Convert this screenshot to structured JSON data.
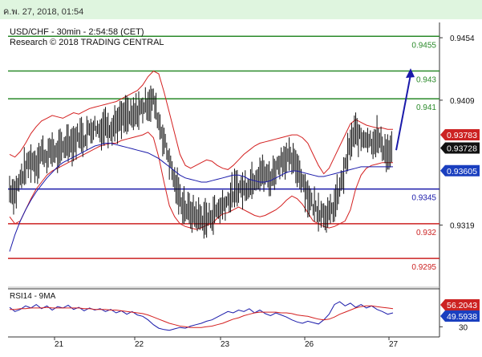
{
  "header": {
    "datetime": "ค.พ. 27, 2018, 01:54"
  },
  "chart_data": {
    "type": "line",
    "title": "USD/CHF - 30min - 2:54:58 (CET)",
    "subtitle": "Research © 2018 TRADING CENTRAL",
    "ylim": [
      0.9276,
      0.9465
    ],
    "y_ticks": [
      0.9454,
      0.9409,
      0.9319
    ],
    "x_ticks": [
      "21",
      "22",
      "23",
      "26",
      "27"
    ],
    "levels": [
      {
        "label": "0.9455",
        "value": 0.9455,
        "color": "#2a8a2a"
      },
      {
        "label": "0.943",
        "value": 0.943,
        "color": "#2a8a2a"
      },
      {
        "label": "0.941",
        "value": 0.941,
        "color": "#2a8a2a"
      },
      {
        "label": "0.9345",
        "value": 0.9345,
        "color": "#1a1aaa"
      },
      {
        "label": "0.932",
        "value": 0.932,
        "color": "#cc2222"
      },
      {
        "label": "0.9295",
        "value": 0.9295,
        "color": "#cc2222"
      }
    ],
    "price_tags": [
      {
        "label": "0.93783",
        "value": 0.93783,
        "bg": "#cc2222"
      },
      {
        "label": "0.93728",
        "value": 0.93728,
        "bg": "#111111"
      },
      {
        "label": "0.93605",
        "value": 0.93605,
        "bg": "#1a3fbf"
      }
    ],
    "price_series": [
      0.9345,
      0.9342,
      0.9352,
      0.936,
      0.9366,
      0.9363,
      0.9372,
      0.9368,
      0.9374,
      0.937,
      0.9375,
      0.938,
      0.9378,
      0.9384,
      0.9382,
      0.9388,
      0.939,
      0.9387,
      0.9392,
      0.9389,
      0.9393,
      0.9395,
      0.9398,
      0.9396,
      0.9401,
      0.9404,
      0.9407,
      0.9409,
      0.9394,
      0.938,
      0.9366,
      0.935,
      0.9338,
      0.9331,
      0.9328,
      0.9326,
      0.9324,
      0.9323,
      0.9326,
      0.933,
      0.9333,
      0.9337,
      0.9342,
      0.9346,
      0.9345,
      0.9349,
      0.9353,
      0.9357,
      0.9355,
      0.9352,
      0.936,
      0.9366,
      0.9368,
      0.9365,
      0.9361,
      0.9352,
      0.934,
      0.9333,
      0.933,
      0.9328,
      0.9326,
      0.9333,
      0.9345,
      0.936,
      0.9378,
      0.9386,
      0.9381,
      0.9383,
      0.9379,
      0.9382,
      0.9376,
      0.937,
      0.9373
    ],
    "ma_series": [
      0.93,
      0.9312,
      0.9322,
      0.933,
      0.9337,
      0.9343,
      0.9348,
      0.9353,
      0.9357,
      0.9361,
      0.9364,
      0.9366,
      0.9368,
      0.937,
      0.9372,
      0.9374,
      0.9376,
      0.9377,
      0.9378,
      0.9378,
      0.9377,
      0.9376,
      0.9375,
      0.9374,
      0.9373,
      0.9372,
      0.9371,
      0.9369,
      0.9367,
      0.9364,
      0.9361,
      0.9358,
      0.9355,
      0.9353,
      0.9352,
      0.9351,
      0.935,
      0.935,
      0.9351,
      0.9352,
      0.9353,
      0.9354,
      0.9355,
      0.9355,
      0.9354,
      0.9352,
      0.9351,
      0.935,
      0.935,
      0.9351,
      0.9353,
      0.9355,
      0.9357,
      0.9358,
      0.9358,
      0.9357,
      0.9356,
      0.9355,
      0.9354,
      0.9354,
      0.9355,
      0.9356,
      0.9357,
      0.9358,
      0.9359,
      0.936,
      0.9361,
      0.9361,
      0.9361,
      0.9361,
      0.9361,
      0.9361,
      0.9361
    ],
    "bb_upper": [
      0.937,
      0.9368,
      0.9372,
      0.9378,
      0.9385,
      0.939,
      0.9394,
      0.9396,
      0.9398,
      0.9397,
      0.9396,
      0.9398,
      0.94,
      0.9399,
      0.9401,
      0.9403,
      0.9404,
      0.9405,
      0.9406,
      0.9407,
      0.9408,
      0.941,
      0.9412,
      0.9414,
      0.9416,
      0.942,
      0.9426,
      0.943,
      0.9428,
      0.9415,
      0.94,
      0.9385,
      0.937,
      0.9362,
      0.936,
      0.9362,
      0.9364,
      0.9366,
      0.9365,
      0.9362,
      0.936,
      0.9359,
      0.9362,
      0.9366,
      0.937,
      0.9373,
      0.9376,
      0.9378,
      0.9379,
      0.938,
      0.9381,
      0.9382,
      0.9383,
      0.9384,
      0.9384,
      0.9382,
      0.9378,
      0.937,
      0.9362,
      0.9356,
      0.936,
      0.9368,
      0.9376,
      0.9384,
      0.9392,
      0.9395,
      0.9393,
      0.9391,
      0.939,
      0.9389,
      0.9389,
      0.9388,
      0.9388
    ],
    "bb_lower": [
      0.9325,
      0.932,
      0.9322,
      0.933,
      0.9338,
      0.9345,
      0.935,
      0.9355,
      0.9358,
      0.936,
      0.9362,
      0.9364,
      0.9366,
      0.9368,
      0.937,
      0.9372,
      0.9374,
      0.9376,
      0.9377,
      0.9378,
      0.9378,
      0.938,
      0.9381,
      0.9382,
      0.9383,
      0.9384,
      0.9386,
      0.9382,
      0.9368,
      0.935,
      0.9333,
      0.9325,
      0.932,
      0.9318,
      0.9317,
      0.9316,
      0.9317,
      0.9319,
      0.932,
      0.9324,
      0.9327,
      0.9328,
      0.933,
      0.9332,
      0.933,
      0.9328,
      0.9326,
      0.9325,
      0.9326,
      0.9328,
      0.933,
      0.9333,
      0.9337,
      0.934,
      0.9338,
      0.9334,
      0.9328,
      0.9322,
      0.932,
      0.9318,
      0.9317,
      0.9318,
      0.932,
      0.9322,
      0.933,
      0.9345,
      0.9355,
      0.936,
      0.9362,
      0.9363,
      0.9364,
      0.9364,
      0.9364
    ],
    "forecast": {
      "from": 0.9373,
      "to": 0.9432
    },
    "rsi": {
      "label": "RSI14 - 9MA",
      "ylim": [
        20,
        80
      ],
      "ticks": [
        30
      ],
      "values": [
        58,
        52,
        55,
        60,
        57,
        62,
        56,
        60,
        54,
        59,
        57,
        61,
        55,
        58,
        53,
        57,
        54,
        56,
        52,
        55,
        50,
        53,
        48,
        52,
        47,
        45,
        40,
        33,
        28,
        26,
        25,
        27,
        29,
        28,
        31,
        33,
        35,
        38,
        40,
        44,
        48,
        52,
        50,
        54,
        52,
        56,
        50,
        54,
        49,
        46,
        50,
        47,
        44,
        40,
        37,
        35,
        38,
        36,
        34,
        40,
        48,
        62,
        66,
        60,
        64,
        58,
        62,
        57,
        60,
        55,
        52,
        48,
        50
      ],
      "ma": [
        55,
        55,
        56,
        56,
        57,
        57,
        57,
        58,
        57,
        57,
        57,
        57,
        57,
        57,
        56,
        56,
        55,
        55,
        55,
        54,
        54,
        53,
        52,
        51,
        50,
        49,
        47,
        44,
        41,
        38,
        35,
        33,
        31,
        30,
        29,
        29,
        29,
        30,
        31,
        33,
        35,
        38,
        41,
        43,
        46,
        48,
        50,
        51,
        51,
        51,
        51,
        50,
        50,
        49,
        47,
        46,
        45,
        43,
        41,
        40,
        41,
        44,
        48,
        51,
        54,
        57,
        59,
        60,
        60,
        59,
        58,
        57,
        56
      ],
      "tags": [
        {
          "label": "56.2043",
          "value": 56.2043,
          "bg": "#cc2222"
        },
        {
          "label": "49.5938",
          "value": 49.5938,
          "bg": "#1a3fbf"
        }
      ]
    }
  }
}
